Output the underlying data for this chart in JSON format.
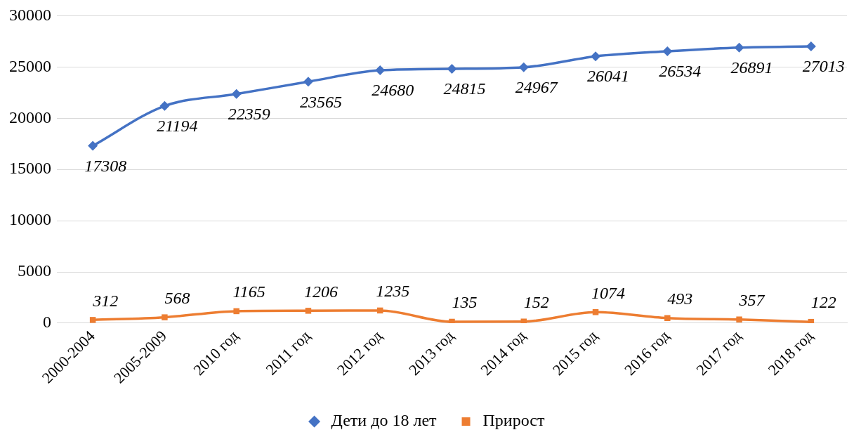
{
  "chart_data": {
    "type": "line",
    "categories": [
      "2000-2004",
      "2005-2009",
      "2010 год",
      "2011 год",
      "2012 год",
      "2013 год",
      "2014 год",
      "2015 год",
      "2016 год",
      "2017 год",
      "2018 год"
    ],
    "series": [
      {
        "name": "Дети до 18 лет",
        "color": "#4472c4",
        "marker": "diamond",
        "values": [
          17308,
          21194,
          22359,
          23565,
          24680,
          24815,
          24967,
          26041,
          26534,
          26891,
          27013
        ]
      },
      {
        "name": "Прирост",
        "color": "#ed7d31",
        "marker": "square",
        "values": [
          312,
          568,
          1165,
          1206,
          1235,
          135,
          152,
          1074,
          493,
          357,
          122
        ]
      }
    ],
    "ylim": [
      0,
      30000
    ],
    "yticks": [
      0,
      5000,
      10000,
      15000,
      20000,
      25000,
      30000
    ],
    "grid": "y",
    "legend": "bottom",
    "data_labels": true,
    "line_style": "solid"
  }
}
